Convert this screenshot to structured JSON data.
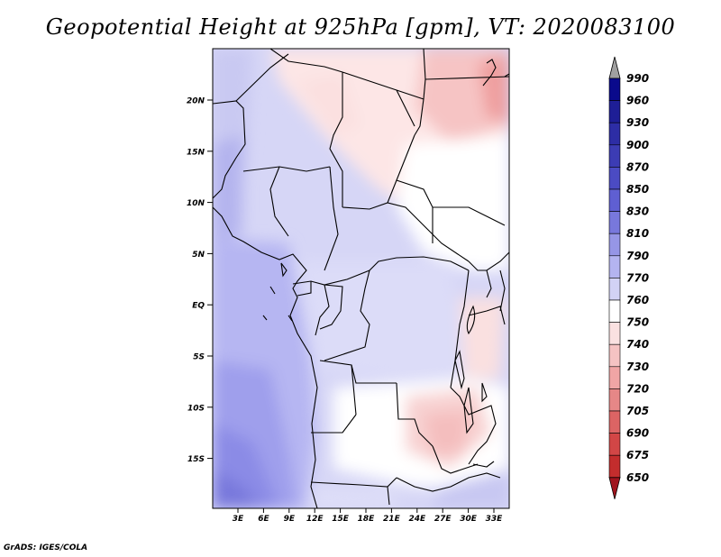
{
  "title": "Geopotential Height at 925hPa [gpm], VT: 2020083100",
  "footer": "GrADS: IGES/COLA",
  "map": {
    "lat_labels": [
      "20N",
      "15N",
      "10N",
      "5N",
      "EQ",
      "5S",
      "10S",
      "15S"
    ],
    "lon_labels": [
      "3E",
      "6E",
      "9E",
      "12E",
      "15E",
      "18E",
      "21E",
      "24E",
      "27E",
      "30E",
      "33E"
    ]
  },
  "colorbar": {
    "levels": [
      "990",
      "960",
      "930",
      "900",
      "870",
      "850",
      "830",
      "810",
      "790",
      "770",
      "760",
      "750",
      "740",
      "730",
      "720",
      "705",
      "690",
      "675",
      "650"
    ],
    "top_arrow_color": "#a0a0a0",
    "bottom_arrow_color": "#a0141e",
    "colors": [
      "#0a0a8c",
      "#1e1e96",
      "#2d2da5",
      "#3c3cb4",
      "#4b4bc3",
      "#5f5fd2",
      "#7878dc",
      "#9696e6",
      "#b4b4f0",
      "#d2d2f5",
      "#ffffff",
      "#fae1e1",
      "#f5c3c3",
      "#f0a5a5",
      "#e68787",
      "#dc6464",
      "#d24646",
      "#c32d2d",
      "#b41e1e"
    ]
  }
}
